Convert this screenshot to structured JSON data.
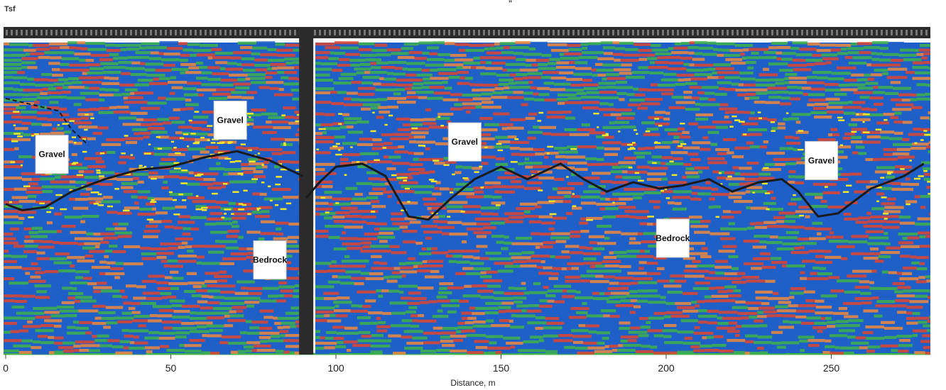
{
  "page": {
    "corner_mark": "Tsf",
    "top_mark": "\""
  },
  "chart_data": {
    "type": "heatmap",
    "title": "",
    "xlabel": "Distance, m",
    "ylabel": "",
    "xlim": [
      0,
      280
    ],
    "xticks": [
      0,
      50,
      100,
      150,
      200,
      250
    ],
    "grid": false,
    "colors": {
      "blue": "#1f5fc8",
      "red": "#e0452f",
      "orange": "#f08a3c",
      "green": "#3fb24a",
      "yellow": "#f2e62a",
      "dark": "#2b2b2b",
      "ground_line": "#1a1a1a"
    },
    "section_break_x": 91,
    "annotations": [
      {
        "text": "Gravel",
        "x": 14
      },
      {
        "text": "Gravel",
        "x": 68
      },
      {
        "text": "Bedrock",
        "x": 80
      },
      {
        "text": "Gravel",
        "x": 139
      },
      {
        "text": "Bedrock",
        "x": 202
      },
      {
        "text": "Gravel",
        "x": 247
      }
    ],
    "interface_line": [
      [
        0,
        0.52
      ],
      [
        5,
        0.54
      ],
      [
        12,
        0.53
      ],
      [
        20,
        0.48
      ],
      [
        30,
        0.44
      ],
      [
        40,
        0.41
      ],
      [
        50,
        0.4
      ],
      [
        60,
        0.37
      ],
      [
        70,
        0.35
      ],
      [
        80,
        0.38
      ],
      [
        90,
        0.43
      ],
      [
        91,
        0.5
      ],
      [
        95,
        0.45
      ],
      [
        100,
        0.4
      ],
      [
        108,
        0.39
      ],
      [
        115,
        0.43
      ],
      [
        122,
        0.56
      ],
      [
        128,
        0.57
      ],
      [
        135,
        0.5
      ],
      [
        142,
        0.44
      ],
      [
        150,
        0.4
      ],
      [
        158,
        0.44
      ],
      [
        168,
        0.39
      ],
      [
        175,
        0.44
      ],
      [
        182,
        0.48
      ],
      [
        190,
        0.45
      ],
      [
        198,
        0.47
      ],
      [
        205,
        0.46
      ],
      [
        213,
        0.44
      ],
      [
        220,
        0.48
      ],
      [
        228,
        0.45
      ],
      [
        235,
        0.44
      ],
      [
        240,
        0.48
      ],
      [
        246,
        0.56
      ],
      [
        252,
        0.55
      ],
      [
        262,
        0.47
      ],
      [
        272,
        0.43
      ],
      [
        278,
        0.39
      ]
    ],
    "upper_dashed_line": [
      [
        0,
        0.18
      ],
      [
        8,
        0.2
      ],
      [
        16,
        0.22
      ],
      [
        20,
        0.28
      ],
      [
        25,
        0.33
      ]
    ]
  }
}
